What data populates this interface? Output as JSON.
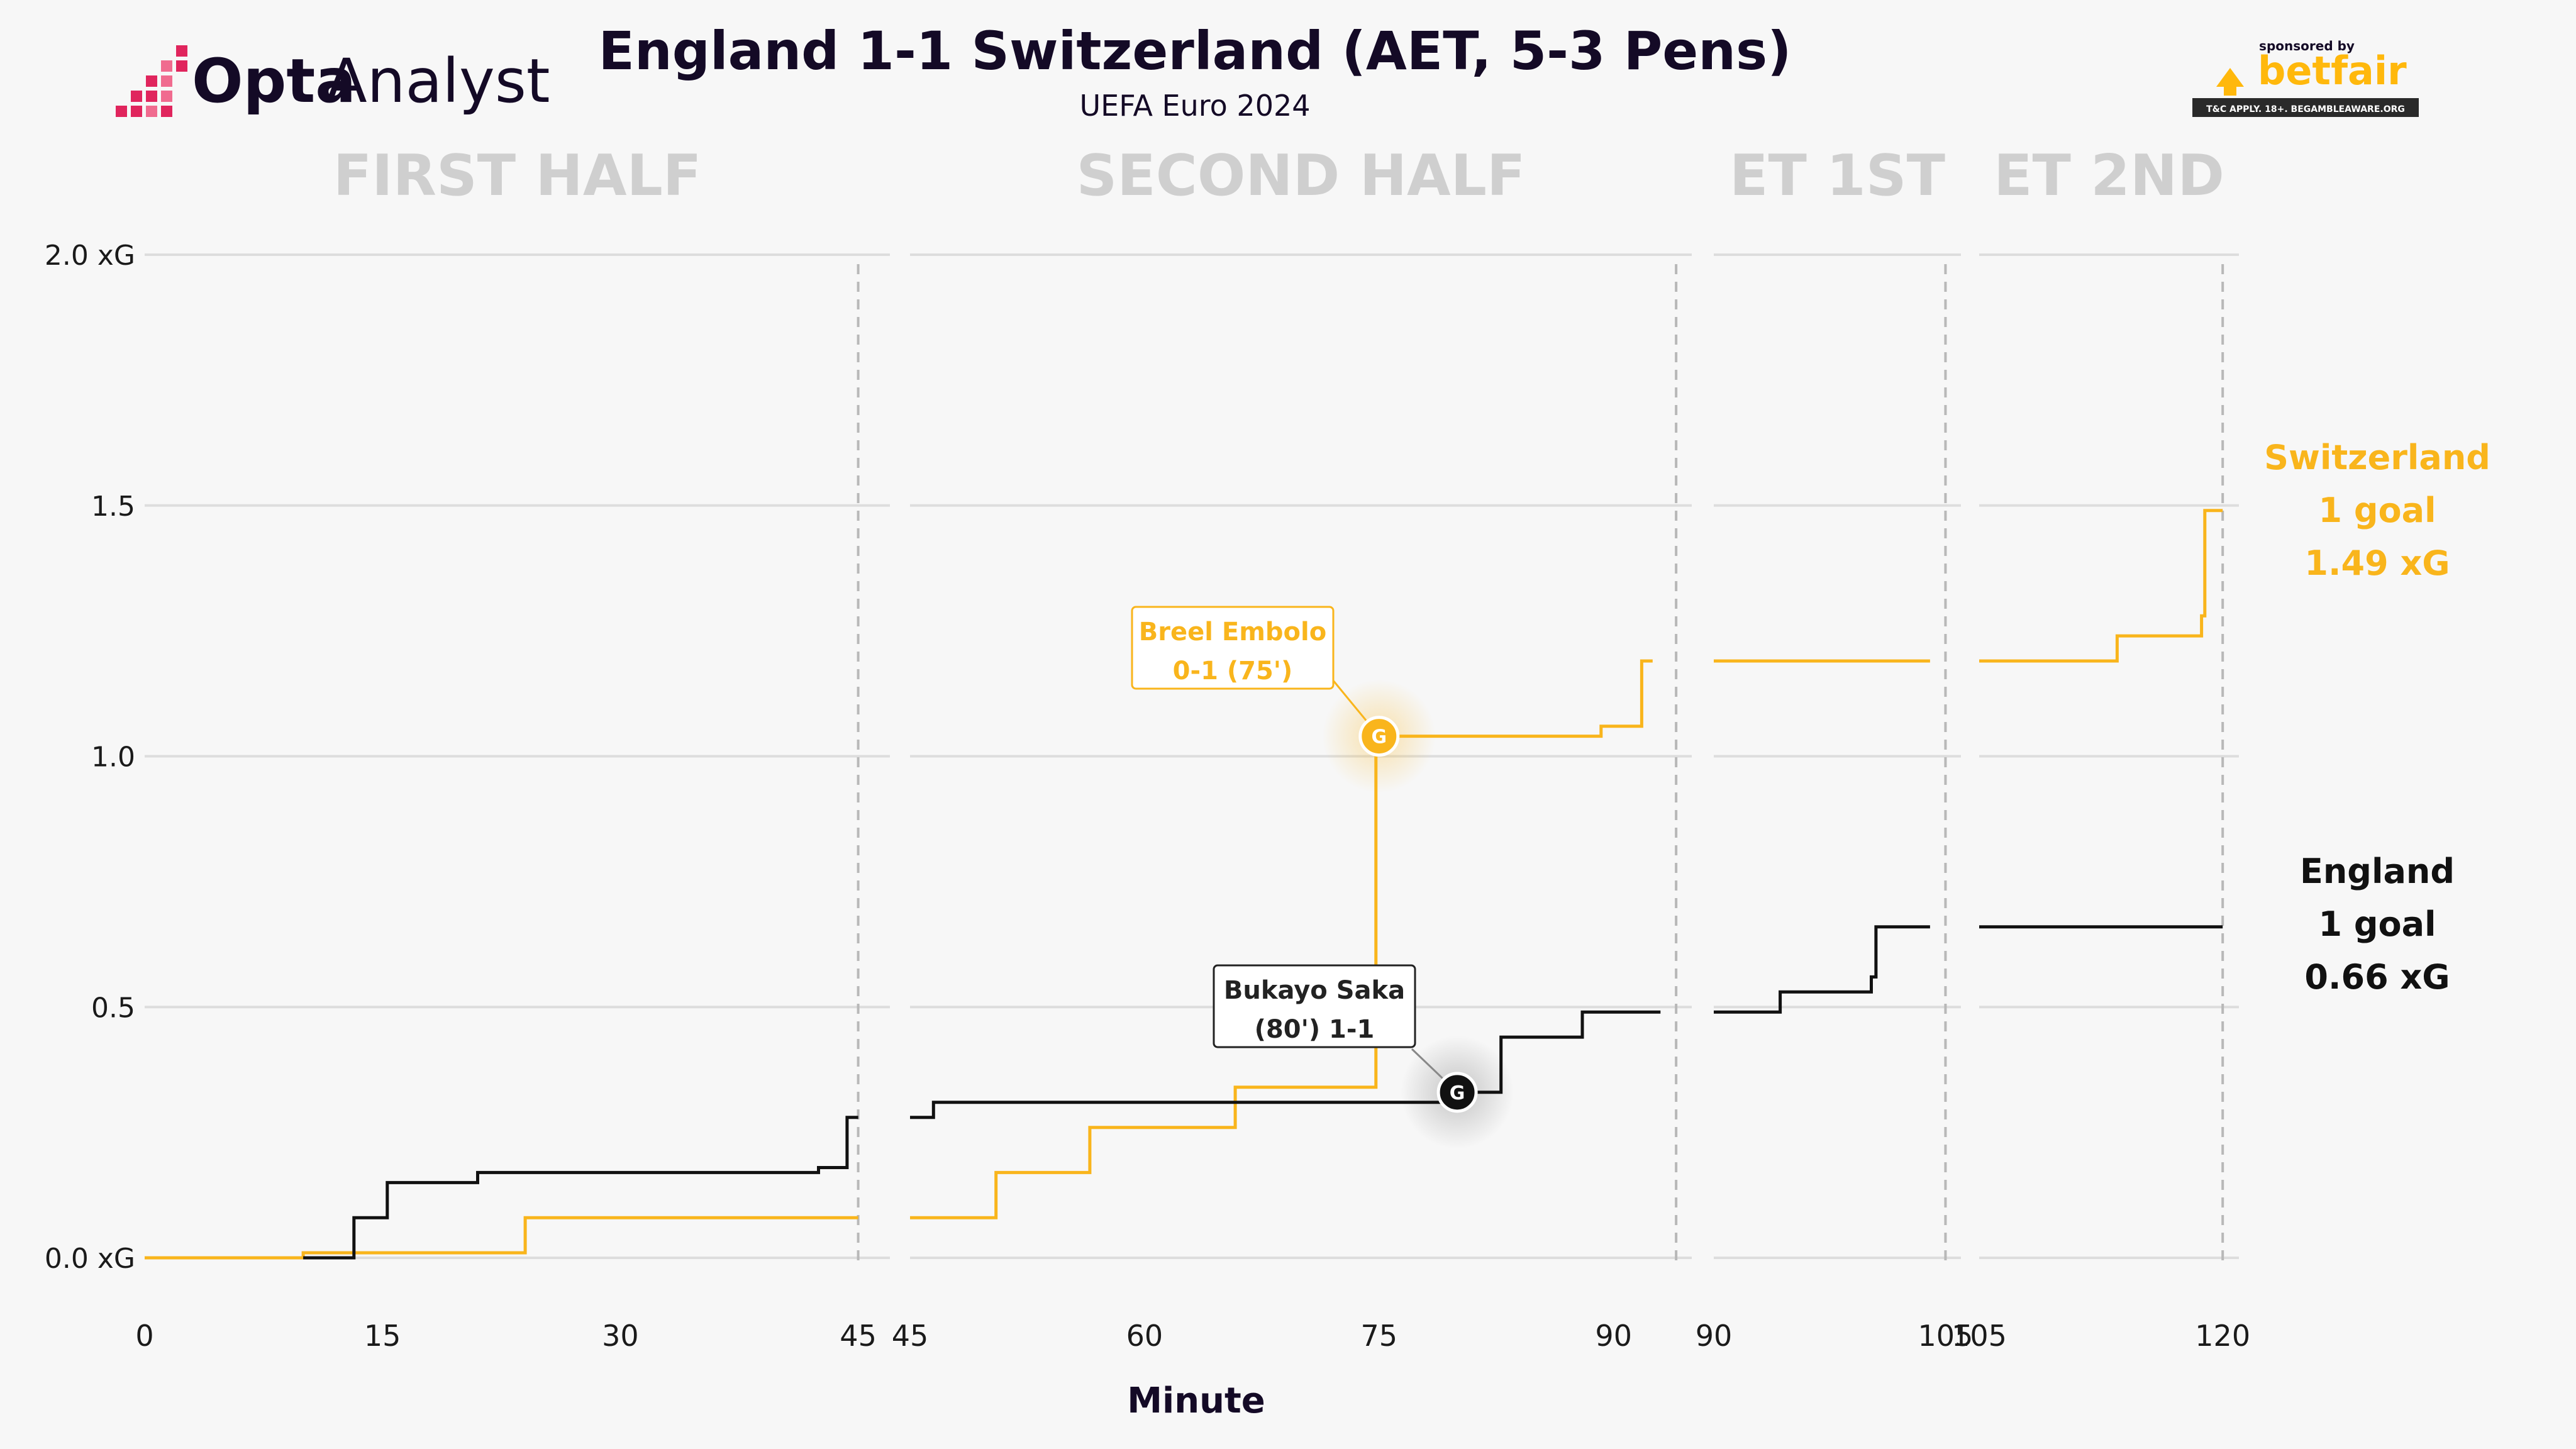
{
  "header": {
    "title": "England 1-1 Switzerland (AET, 5-3 Pens)",
    "subtitle": "UEFA Euro 2024",
    "logo_text_bold": "Opta",
    "logo_text_light": "Analyst",
    "sponsor_small": "sponsored by",
    "sponsor_brand": "betfair",
    "sponsor_disclaimer": "T&C APPLY. 18+. BEGAMBLEAWARE.ORG"
  },
  "colors": {
    "background": "#f7f7f7",
    "england": "#111111",
    "switzerland": "#f9b51c",
    "grid": "#dddddd",
    "period_label": "#cfcfcf",
    "logo_accent": "#e0255d"
  },
  "legend": {
    "switzerland": {
      "name": "Switzerland",
      "goals": "1 goal",
      "xg": "1.49 xG"
    },
    "england": {
      "name": "England",
      "goals": "1 goal",
      "xg": "0.66 xG"
    }
  },
  "chart_data": {
    "type": "line",
    "step": true,
    "xlabel": "Minute",
    "y_ticks": [
      "0.0 xG",
      "0.5",
      "1.0",
      "1.5",
      "2.0 xG"
    ],
    "y_tick_values": [
      0,
      0.5,
      1.0,
      1.5,
      2.0
    ],
    "ylim": [
      0,
      2.0
    ],
    "grid": true,
    "periods": [
      {
        "label": "FIRST HALF",
        "range": [
          0,
          47
        ],
        "end_marker": 45,
        "ticks": [
          0,
          15,
          30,
          45
        ],
        "tick_labels": [
          "0",
          "15",
          "30",
          "45"
        ]
      },
      {
        "label": "SECOND HALF",
        "range": [
          45,
          95
        ],
        "end_marker": 94,
        "ticks": [
          45,
          60,
          75,
          90
        ],
        "tick_labels": [
          "45",
          "60",
          "75",
          "90"
        ]
      },
      {
        "label": "ET 1ST",
        "range": [
          90,
          106
        ],
        "end_marker": 105,
        "ticks": [
          90,
          105
        ],
        "tick_labels": [
          "90",
          "105"
        ]
      },
      {
        "label": "ET 2ND",
        "range": [
          105,
          121
        ],
        "end_marker": 120,
        "ticks": [
          105,
          120
        ],
        "tick_labels": [
          "105",
          "120"
        ]
      }
    ],
    "series": [
      {
        "name": "England",
        "segments": [
          [
            [
              10,
              0
            ],
            [
              13.2,
              0
            ],
            [
              13.2,
              0.08
            ],
            [
              15.3,
              0.08
            ],
            [
              15.3,
              0.15
            ],
            [
              21,
              0.15
            ],
            [
              21,
              0.17
            ],
            [
              42.5,
              0.17
            ],
            [
              42.5,
              0.18
            ],
            [
              44.3,
              0.18
            ],
            [
              44.3,
              0.28
            ],
            [
              45,
              0.28
            ]
          ],
          [
            [
              45,
              0.28
            ],
            [
              46.5,
              0.28
            ],
            [
              46.5,
              0.31
            ],
            [
              80,
              0.31
            ],
            [
              80,
              0.33
            ],
            [
              82.8,
              0.33
            ],
            [
              82.8,
              0.44
            ],
            [
              88,
              0.44
            ],
            [
              88,
              0.49
            ],
            [
              93,
              0.49
            ]
          ],
          [
            [
              90,
              0.49
            ],
            [
              94.3,
              0.49
            ],
            [
              94.3,
              0.53
            ],
            [
              100.2,
              0.53
            ],
            [
              100.2,
              0.56
            ],
            [
              100.5,
              0.56
            ],
            [
              100.5,
              0.66
            ],
            [
              104,
              0.66
            ]
          ],
          [
            [
              105,
              0.66
            ],
            [
              120,
              0.66
            ]
          ]
        ]
      },
      {
        "name": "Switzerland",
        "segments": [
          [
            [
              0,
              0
            ],
            [
              10,
              0
            ],
            [
              10,
              0.01
            ],
            [
              24,
              0.01
            ],
            [
              24,
              0.08
            ],
            [
              45,
              0.08
            ]
          ],
          [
            [
              45,
              0.08
            ],
            [
              50.5,
              0.08
            ],
            [
              50.5,
              0.17
            ],
            [
              56.5,
              0.17
            ],
            [
              56.5,
              0.26
            ],
            [
              65.8,
              0.26
            ],
            [
              65.8,
              0.34
            ],
            [
              74.8,
              0.34
            ],
            [
              74.8,
              1.04
            ],
            [
              89.2,
              1.04
            ],
            [
              89.2,
              1.06
            ],
            [
              91.8,
              1.06
            ],
            [
              91.8,
              1.19
            ],
            [
              92.5,
              1.19
            ]
          ],
          [
            [
              90,
              1.19
            ],
            [
              104,
              1.19
            ]
          ],
          [
            [
              105,
              1.19
            ],
            [
              113.5,
              1.19
            ],
            [
              113.5,
              1.24
            ],
            [
              118.7,
              1.24
            ],
            [
              118.7,
              1.28
            ],
            [
              118.9,
              1.28
            ],
            [
              118.9,
              1.49
            ],
            [
              120,
              1.49
            ]
          ]
        ]
      }
    ],
    "goals": [
      {
        "team": "Switzerland",
        "minute": 75,
        "xg": 1.04,
        "marker": "G",
        "player": "Breel Embolo",
        "detail": "0-1 (75')"
      },
      {
        "team": "England",
        "minute": 80,
        "xg": 0.33,
        "marker": "G",
        "player": "Bukayo Saka",
        "detail": "(80') 1-1"
      }
    ]
  }
}
